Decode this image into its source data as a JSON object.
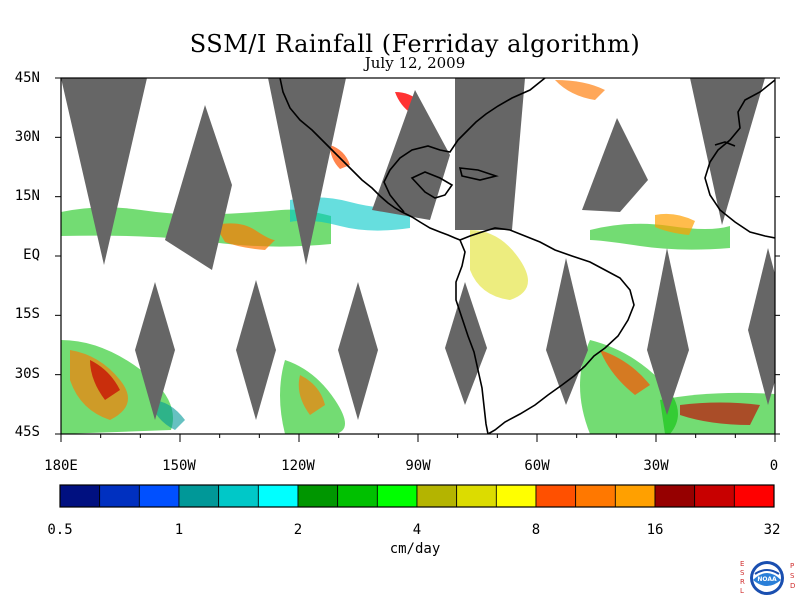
{
  "title": "SSM/I Rainfall (Ferriday algorithm)",
  "date": "July 12, 2009",
  "lat_labels": [
    "45N",
    "30N",
    "15N",
    "EQ",
    "15S",
    "30S",
    "45S"
  ],
  "lon_labels": [
    "180E",
    "150W",
    "120W",
    "90W",
    "60W",
    "30W",
    "0"
  ],
  "colorbar": {
    "colors": [
      "#001080",
      "#0030c0",
      "#0050ff",
      "#009898",
      "#00c8c8",
      "#00ffff",
      "#009600",
      "#00c000",
      "#00ff00",
      "#b4b400",
      "#dcdc00",
      "#ffff00",
      "#ff5000",
      "#ff7800",
      "#ffa000",
      "#960000",
      "#c80000",
      "#ff0000"
    ],
    "tick_labels": [
      "0.5",
      "1",
      "2",
      "4",
      "8",
      "16",
      "32"
    ],
    "units": "cm/day"
  },
  "logo": {
    "left_letters": "ESRL",
    "right_letters": "PSD",
    "center": "NOAA"
  }
}
